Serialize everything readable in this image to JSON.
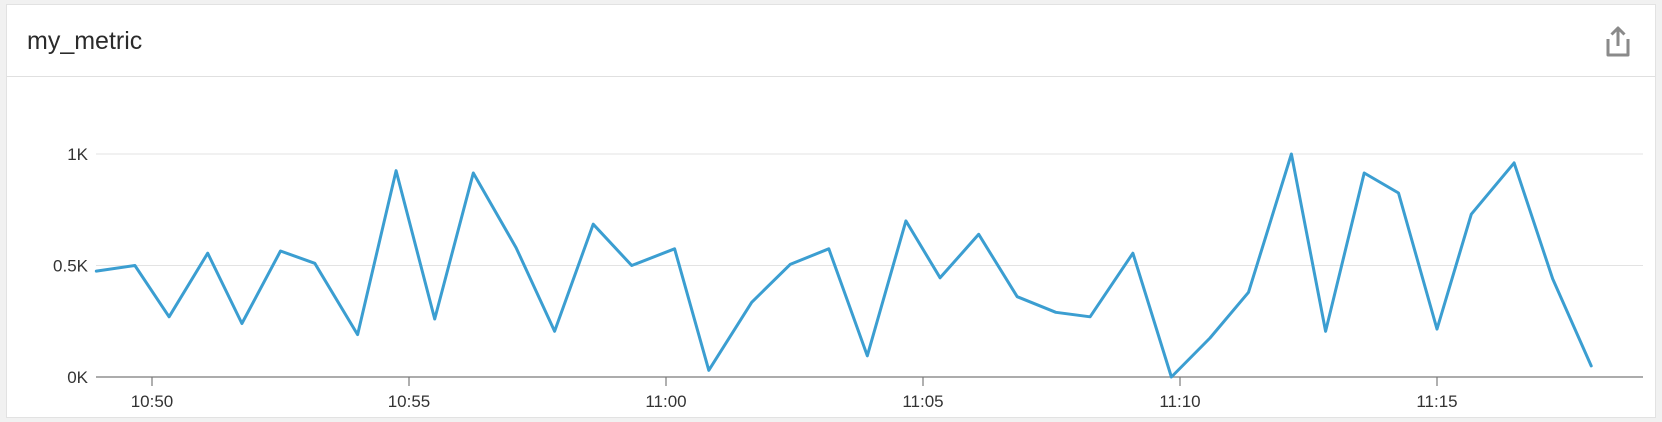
{
  "widget": {
    "title": "my_metric",
    "share_icon": "share-icon"
  },
  "chart_data": {
    "type": "line",
    "title": "my_metric",
    "xlabel": "",
    "ylabel": "",
    "y_ticks": [
      {
        "value": 0,
        "label": "0K"
      },
      {
        "value": 500,
        "label": "0.5K"
      },
      {
        "value": 1000,
        "label": "1K"
      }
    ],
    "x_ticks": [
      "10:50",
      "10:55",
      "11:00",
      "11:05",
      "11:10",
      "11:15"
    ],
    "ylim": [
      0,
      1000
    ],
    "grid": true,
    "series": [
      {
        "color": "#3b9ed1",
        "x": [
          "10:48:55",
          "10:49:40",
          "10:50:20",
          "10:51:05",
          "10:51:45",
          "10:52:30",
          "10:53:10",
          "10:54:00",
          "10:54:45",
          "10:55:30",
          "10:56:15",
          "10:57:05",
          "10:57:50",
          "10:58:35",
          "10:59:20",
          "11:00:10",
          "11:00:50",
          "11:01:40",
          "11:02:25",
          "11:03:10",
          "11:03:55",
          "11:04:40",
          "11:05:20",
          "11:06:05",
          "11:06:50",
          "11:07:35",
          "11:08:15",
          "11:09:05",
          "11:09:50",
          "11:10:35",
          "11:11:20",
          "11:12:10",
          "11:12:50",
          "11:13:35",
          "11:14:15",
          "11:15:00",
          "11:15:40",
          "11:16:30",
          "11:17:15",
          "11:18:00"
        ],
        "values": [
          475,
          500,
          270,
          555,
          240,
          565,
          510,
          190,
          925,
          260,
          915,
          580,
          205,
          685,
          500,
          575,
          30,
          335,
          505,
          575,
          95,
          700,
          445,
          640,
          360,
          290,
          270,
          555,
          0,
          175,
          380,
          1000,
          205,
          915,
          825,
          215,
          730,
          960,
          440,
          50
        ]
      }
    ]
  }
}
